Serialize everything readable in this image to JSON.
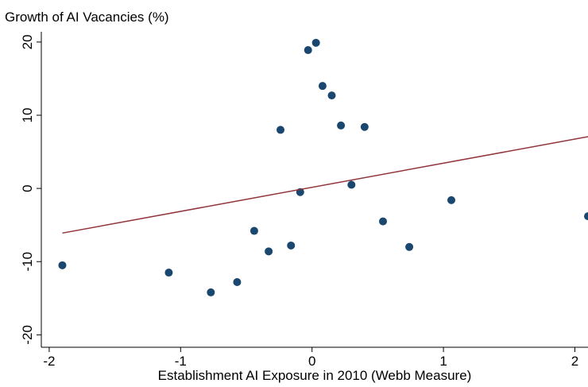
{
  "chart_data": {
    "type": "scatter",
    "title": "Growth of AI Vacancies (%)",
    "x_label": "Establishment AI Exposure in 2010 (Webb Measure)",
    "series": [
      {
        "color": "#1a476f",
        "x": [
          -1.9,
          -1.09,
          -0.77,
          -0.57,
          -0.44,
          -0.33,
          -0.16,
          -0.24,
          -0.09,
          -0.03,
          0.03,
          0.08,
          0.15,
          0.22,
          0.3,
          0.4,
          0.54,
          0.74,
          1.06,
          2.1
        ],
        "values": [
          -10.5,
          -11.5,
          -14.2,
          -12.8,
          -5.8,
          -8.6,
          -7.8,
          8.0,
          -0.5,
          18.9,
          19.9,
          14.0,
          12.7,
          8.6,
          0.5,
          8.4,
          -4.5,
          -8.0,
          -1.6,
          -3.8
        ]
      },
      {
        "type": "line",
        "color": "#90353b",
        "x": [
          -1.9,
          2.1
        ],
        "values": [
          -6.1,
          7.07
        ]
      }
    ],
    "xlim": [
      -2.06,
      2.1
    ],
    "xticks": [
      -2,
      -1,
      0,
      1,
      2
    ],
    "ylim": [
      -21.7,
      21.4
    ],
    "yticks": [
      -20,
      -10,
      0,
      10,
      20
    ]
  }
}
